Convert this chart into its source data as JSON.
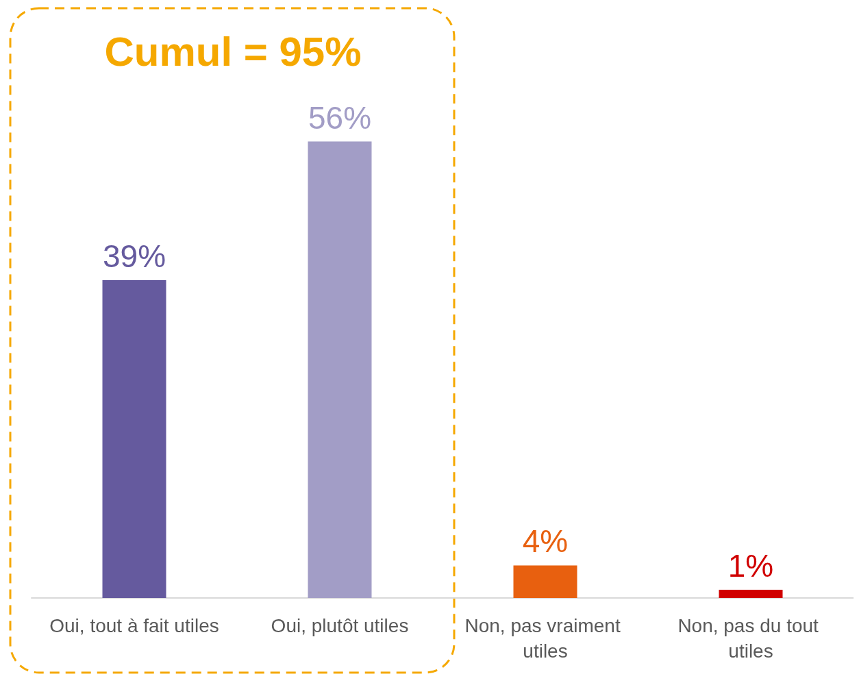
{
  "chart_data": {
    "type": "bar",
    "categories": [
      "Oui, tout à fait utiles",
      "Oui, plutôt utiles",
      "Non, pas vraiment utiles",
      "Non, pas du tout utiles"
    ],
    "values": [
      39,
      56,
      4,
      1
    ],
    "colors": [
      "#655a9e",
      "#a29dc6",
      "#e8600f",
      "#d00000"
    ],
    "value_labels": [
      "39%",
      "56%",
      "4%",
      "1%"
    ],
    "annotations": [
      "Cumul = 95%"
    ]
  }
}
